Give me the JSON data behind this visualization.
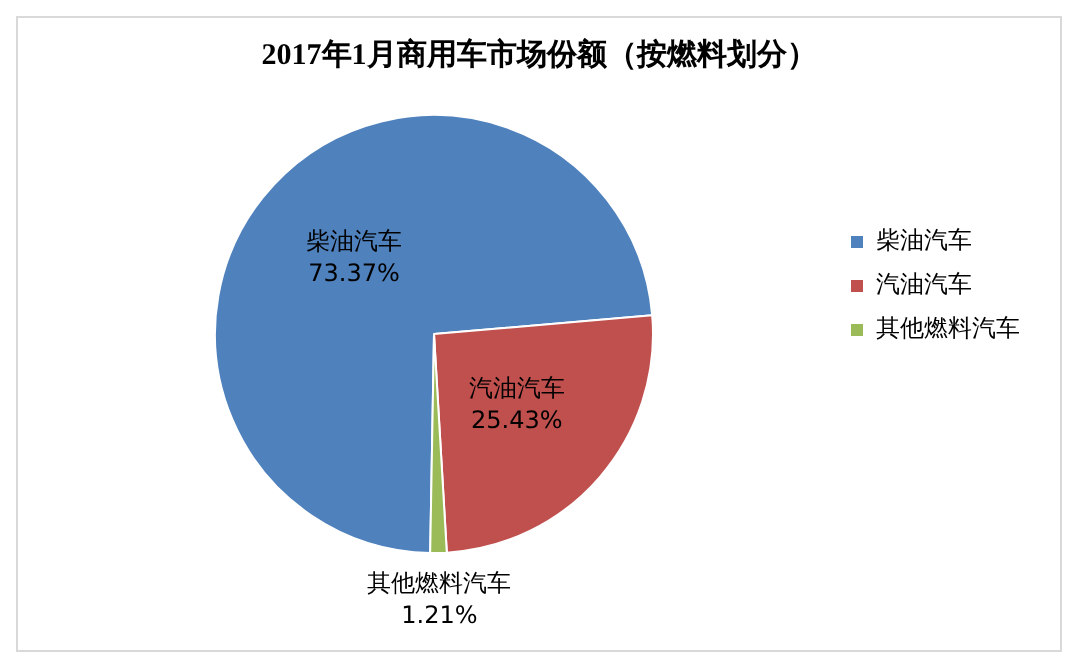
{
  "chart_data": {
    "type": "pie",
    "title": "2017年1月商用车市场份额（按燃料划分）",
    "categories": [
      "柴油汽车",
      "汽油汽车",
      "其他燃料汽车"
    ],
    "values": [
      73.37,
      25.43,
      1.21
    ],
    "value_labels": [
      "73.37%",
      "25.43%",
      "1.21%"
    ],
    "colors": [
      "#4f81bd",
      "#c0504d",
      "#9bbb59"
    ],
    "legend": "right"
  }
}
